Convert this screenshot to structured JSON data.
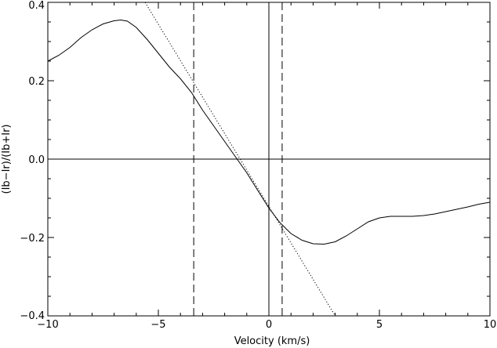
{
  "chart_data": {
    "type": "line",
    "title": "",
    "xlabel": "Velocity (km/s)",
    "ylabel": "(Ib−Ir)/(Ib+Ir)",
    "xlim": [
      -10,
      10
    ],
    "ylim": [
      -0.4,
      0.4
    ],
    "x_ticks": [
      -10,
      -5,
      0,
      5,
      10
    ],
    "x_tick_labels": [
      "−10",
      "−5",
      "0",
      "5",
      "10"
    ],
    "y_ticks": [
      -0.4,
      -0.2,
      0.0,
      0.2,
      0.4
    ],
    "y_tick_labels": [
      "−0.4",
      "−0.2",
      "0.0",
      "0.2",
      "0.4"
    ],
    "grid": false,
    "legend": "none",
    "series": [
      {
        "style": "solid",
        "x": [
          -10,
          -9.5,
          -9,
          -8.5,
          -8,
          -7.5,
          -7,
          -6.7,
          -6.4,
          -6,
          -5.5,
          -5,
          -4.5,
          -4,
          -3.5,
          -3,
          -2.5,
          -2,
          -1.5,
          -1,
          -0.5,
          0,
          0.5,
          1,
          1.5,
          2,
          2.5,
          3,
          3.5,
          4,
          4.5,
          5,
          5.5,
          6,
          6.5,
          7,
          7.5,
          8,
          8.5,
          9,
          9.5,
          10
        ],
        "y": [
          0.25,
          0.265,
          0.285,
          0.31,
          0.33,
          0.345,
          0.353,
          0.355,
          0.352,
          0.336,
          0.305,
          0.27,
          0.235,
          0.205,
          0.17,
          0.125,
          0.085,
          0.045,
          0.005,
          -0.035,
          -0.08,
          -0.125,
          -0.162,
          -0.19,
          -0.207,
          -0.216,
          -0.217,
          -0.211,
          -0.196,
          -0.178,
          -0.16,
          -0.15,
          -0.146,
          -0.146,
          -0.146,
          -0.144,
          -0.14,
          -0.134,
          -0.128,
          -0.122,
          -0.115,
          -0.11
        ]
      },
      {
        "style": "dotted",
        "x": [
          -5.6,
          3.0
        ],
        "y": [
          0.4,
          -0.4
        ]
      }
    ],
    "reference_lines": {
      "vertical_solid": [
        0
      ],
      "vertical_dashed": [
        -3.4,
        0.6
      ],
      "horizontal_solid": [
        0
      ]
    }
  }
}
